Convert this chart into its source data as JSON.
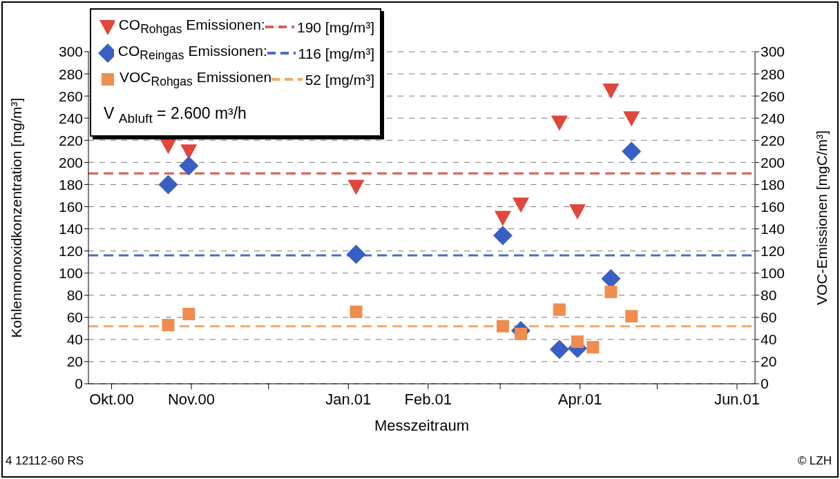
{
  "chart_data": {
    "type": "scatter",
    "xlabel": "Messzeitraum",
    "ylabel": "Kohlenmonoxidkonzentration [mg/m³]",
    "y2label": "VOC-Emissionen [mgC/m³]",
    "xlim": [
      "2000-09-22",
      "2001-06-08"
    ],
    "xticks": [
      {
        "value": "2000-10-01",
        "label": "Okt.00"
      },
      {
        "value": "2000-11-01",
        "label": "Nov.00"
      },
      {
        "value": "2000-12-01",
        "label": null
      },
      {
        "value": "2001-01-01",
        "label": "Jan.01"
      },
      {
        "value": "2001-02-01",
        "label": "Feb.01"
      },
      {
        "value": "2001-03-01",
        "label": null
      },
      {
        "value": "2001-04-01",
        "label": "Apr.01"
      },
      {
        "value": "2001-05-01",
        "label": null
      },
      {
        "value": "2001-06-01",
        "label": "Jun.01"
      }
    ],
    "ylim": [
      0,
      300
    ],
    "yticks": [
      0,
      20,
      40,
      60,
      80,
      100,
      120,
      140,
      160,
      180,
      200,
      220,
      240,
      260,
      280,
      300
    ],
    "y2lim": [
      0,
      300
    ],
    "y2ticks": [
      0,
      20,
      40,
      60,
      80,
      100,
      120,
      140,
      160,
      180,
      200,
      220,
      240,
      260,
      280,
      300
    ],
    "grid": "y",
    "legend": "top left",
    "series": [
      {
        "name": "CO$_{Rohgas}$ Emissionen:",
        "color": "#e0463c",
        "marker": "triangle",
        "x": [
          "2000-10-23",
          "2000-10-31",
          "2001-01-04",
          "2001-03-02",
          "2001-03-09",
          "2001-03-24",
          "2001-03-31",
          "2001-04-13",
          "2001-04-21"
        ],
        "values": [
          215,
          210,
          178,
          150,
          162,
          236,
          156,
          265,
          240
        ]
      },
      {
        "name": "CO$_{Reingas}$ Emissionen:",
        "color": "#3a5fc4",
        "marker": "diamond",
        "x": [
          "2000-10-23",
          "2000-10-31",
          "2001-01-04",
          "2001-03-02",
          "2001-03-09",
          "2001-03-24",
          "2001-03-31",
          "2001-04-13",
          "2001-04-21"
        ],
        "values": [
          180,
          197,
          117,
          134,
          48,
          31,
          32,
          95,
          210
        ]
      },
      {
        "name": "VOC$_{Rohgas}$ Emissionen",
        "color": "#f08c50",
        "marker": "square",
        "axis": "y2",
        "x": [
          "2000-10-23",
          "2000-10-31",
          "2001-01-04",
          "2001-03-02",
          "2001-03-09",
          "2001-03-24",
          "2001-03-31",
          "2001-04-06",
          "2001-04-13",
          "2001-04-21"
        ],
        "values": [
          53,
          63,
          65,
          52,
          45,
          67,
          38,
          33,
          83,
          61
        ]
      }
    ],
    "ref_lines": [
      {
        "axis": "y",
        "value": 190,
        "label": "190 [mg/m³]",
        "color": "#e05a50",
        "line_style": "dashed"
      },
      {
        "axis": "y",
        "value": 116,
        "label": "116 [mg/m³]",
        "color": "#4a6cc8",
        "line_style": "dashed"
      },
      {
        "axis": "y",
        "value": 52,
        "label": "52 [mg/m³]",
        "color": "#f0a868",
        "line_style": "dashed"
      }
    ],
    "annotations": [
      "V $_{Abluft}$ = 2.600 m³/h",
      "4 12112-60 RS",
      "© LZH"
    ]
  }
}
